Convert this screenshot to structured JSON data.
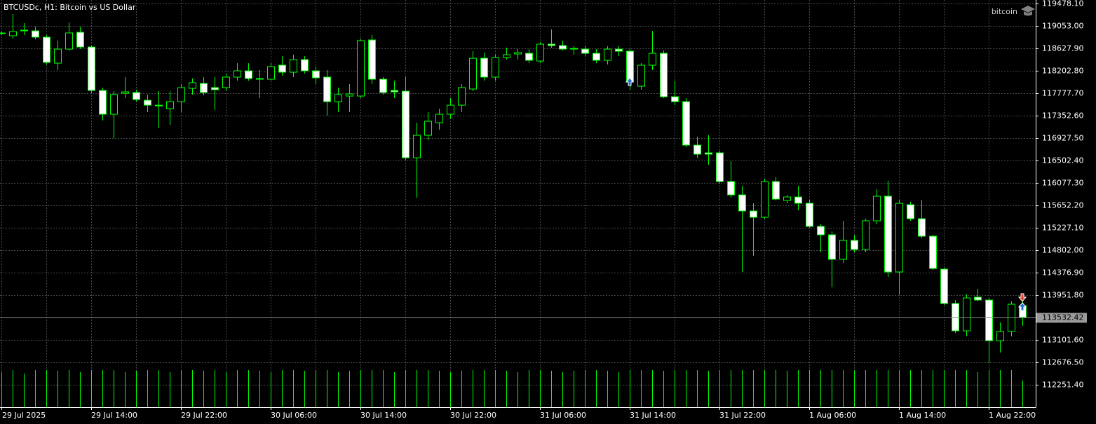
{
  "chart_data": {
    "type": "candlestick",
    "title": "BTCUSDc, H1:  Bitcoin vs US Dollar",
    "watermark": "bitcoin",
    "categories": [
      "29 Jul 2025",
      null,
      null,
      null,
      null,
      null,
      null,
      null,
      "29 Jul 14:00",
      null,
      null,
      null,
      null,
      null,
      null,
      null,
      "29 Jul 22:00",
      null,
      null,
      null,
      null,
      null,
      null,
      null,
      "30 Jul 06:00",
      null,
      null,
      null,
      null,
      null,
      null,
      null,
      "30 Jul 14:00",
      null,
      null,
      null,
      null,
      null,
      null,
      null,
      "30 Jul 22:00",
      null,
      null,
      null,
      null,
      null,
      null,
      null,
      "31 Jul 06:00",
      null,
      null,
      null,
      null,
      null,
      null,
      null,
      "31 Jul 14:00",
      null,
      null,
      null,
      null,
      null,
      null,
      null,
      "31 Jul 22:00",
      null,
      null,
      null,
      null,
      null,
      null,
      null,
      "1 Aug 06:00",
      null,
      null,
      null,
      null,
      null,
      null,
      null,
      "1 Aug 14:00",
      null,
      null,
      null,
      null,
      null,
      null,
      null,
      "1 Aug 22:00",
      null,
      null,
      null
    ],
    "open": [
      118907,
      118867,
      118973,
      118960,
      118840,
      118348,
      118614,
      118933,
      118654,
      117830,
      117379,
      117777,
      117791,
      117644,
      117551,
      117485,
      117618,
      117870,
      117963,
      117884,
      117884,
      118083,
      118202,
      118056,
      118043,
      118309,
      118176,
      118415,
      118202,
      118083,
      117618,
      117724,
      117724,
      118787,
      118043,
      117830,
      117817,
      116555,
      116980,
      117219,
      117379,
      117551,
      117857,
      118441,
      118083,
      118455,
      118521,
      118534,
      118388,
      118707,
      118681,
      118627,
      118614,
      118534,
      118402,
      118614,
      118574,
      117910,
      118309,
      118534,
      117711,
      117618,
      116794,
      116648,
      116648,
      116103,
      115851,
      115546,
      115426,
      116103,
      115745,
      115811,
      115692,
      115253,
      115094,
      114629,
      114988,
      114815,
      115360,
      115825,
      114390,
      115665,
      115399,
      115067,
      114443,
      113792,
      113274,
      113912,
      113858,
      113088,
      113261,
      113752
    ],
    "high": [
      118947,
      119279,
      119106,
      119039,
      118880,
      118774,
      119119,
      119039,
      118681,
      117884,
      117817,
      118083,
      117844,
      117751,
      117817,
      117817,
      117950,
      118056,
      118083,
      118083,
      118149,
      118348,
      118348,
      118216,
      118348,
      118481,
      118508,
      118481,
      118282,
      118216,
      117884,
      117950,
      118813,
      118880,
      118083,
      118016,
      118083,
      117219,
      117419,
      117485,
      117684,
      117950,
      118574,
      118548,
      118508,
      118641,
      118614,
      118614,
      118747,
      118986,
      118774,
      118667,
      118667,
      118614,
      118667,
      118667,
      118614,
      118348,
      118960,
      118588,
      118016,
      117684,
      116954,
      116980,
      116688,
      116489,
      116024,
      115692,
      116157,
      116183,
      115851,
      116024,
      115758,
      115293,
      115160,
      115360,
      115094,
      115399,
      115957,
      116117,
      115758,
      115718,
      115758,
      115094,
      114469,
      113858,
      113965,
      114071,
      113898,
      113433,
      113832,
      113898
    ],
    "low": [
      118880,
      118814,
      118880,
      118800,
      118322,
      118216,
      118588,
      118614,
      117791,
      117259,
      116927,
      117684,
      117618,
      117419,
      117113,
      117179,
      117419,
      117751,
      117737,
      117458,
      117817,
      118016,
      118016,
      117684,
      118016,
      118109,
      118083,
      118149,
      117950,
      117352,
      117419,
      117419,
      117684,
      117950,
      117751,
      117684,
      116515,
      115798,
      116887,
      117086,
      117286,
      117419,
      117817,
      118016,
      118016,
      118415,
      118415,
      118348,
      118348,
      118641,
      118588,
      118508,
      118481,
      118348,
      118322,
      118481,
      117844,
      117844,
      118216,
      117684,
      117551,
      116754,
      116555,
      116422,
      116064,
      115798,
      114390,
      114695,
      115399,
      115745,
      115692,
      115559,
      115227,
      114762,
      114098,
      114563,
      114762,
      114762,
      115293,
      114297,
      113965,
      115360,
      115027,
      114430,
      113765,
      113234,
      113168,
      113832,
      112663,
      112862,
      113168,
      113367
    ],
    "close": [
      118920,
      118947,
      118973,
      118840,
      118362,
      118614,
      118920,
      118654,
      117830,
      117379,
      117751,
      117804,
      117658,
      117551,
      117538,
      117618,
      117884,
      117977,
      117791,
      117844,
      118083,
      118202,
      118056,
      118043,
      118282,
      118176,
      118415,
      118202,
      118070,
      117618,
      117751,
      117764,
      118774,
      118043,
      117791,
      117804,
      116555,
      116980,
      117246,
      117379,
      117551,
      117884,
      118441,
      118083,
      118455,
      118508,
      118548,
      118402,
      118707,
      118681,
      118614,
      118614,
      118534,
      118402,
      118614,
      118574,
      117990,
      118309,
      118534,
      117711,
      117618,
      116794,
      116622,
      116622,
      116103,
      115851,
      115546,
      115426,
      116103,
      115771,
      115811,
      115692,
      115253,
      115094,
      114629,
      114988,
      114815,
      115360,
      115825,
      114390,
      115692,
      115399,
      115067,
      114456,
      113792,
      113274,
      113898,
      113858,
      113088,
      113261,
      113779,
      113532.42
    ],
    "volume": [
      50,
      53,
      48,
      53,
      53,
      52,
      53,
      50,
      53,
      53,
      53,
      50,
      52,
      53,
      53,
      50,
      53,
      53,
      52,
      53,
      50,
      53,
      53,
      52,
      50,
      53,
      53,
      52,
      53,
      53,
      50,
      52,
      53,
      53,
      53,
      50,
      53,
      53,
      53,
      52,
      50,
      52,
      53,
      53,
      53,
      52,
      50,
      53,
      53,
      52,
      50,
      52,
      53,
      53,
      52,
      50,
      53,
      53,
      53,
      52,
      53,
      53,
      53,
      52,
      53,
      53,
      53,
      53,
      53,
      53,
      52,
      53,
      53,
      53,
      53,
      53,
      53,
      53,
      53,
      53,
      53,
      53,
      53,
      53,
      53,
      53,
      53,
      50,
      53,
      53,
      53,
      38
    ],
    "ylim": [
      111826.7,
      119544.5
    ],
    "yticks": [
      {
        "value": 119478.1,
        "label": "119478.10"
      },
      {
        "value": 119053,
        "label": "119053.00"
      },
      {
        "value": 118627.9,
        "label": "118627.90"
      },
      {
        "value": 118202.8,
        "label": "118202.80"
      },
      {
        "value": 117777.7,
        "label": "117777.70"
      },
      {
        "value": 117352.6,
        "label": "117352.60"
      },
      {
        "value": 116927.5,
        "label": "116927.50"
      },
      {
        "value": 116502.4,
        "label": "116502.40"
      },
      {
        "value": 116077.3,
        "label": "116077.30"
      },
      {
        "value": 115652.2,
        "label": "115652.20"
      },
      {
        "value": 115227.1,
        "label": "115227.10"
      },
      {
        "value": 114802,
        "label": "114802.00"
      },
      {
        "value": 114376.9,
        "label": "114376.90"
      },
      {
        "value": 113951.8,
        "label": "113951.80"
      },
      {
        "value": 113101.6,
        "label": "113101.60"
      },
      {
        "value": 112676.5,
        "label": "112676.50"
      },
      {
        "value": 112251.4,
        "label": "112251.40"
      }
    ],
    "grid": true,
    "colors": {
      "up": "#000000",
      "down": "#ffffff",
      "line": "#00ff00",
      "volume": "#00ff00"
    }
  }
}
